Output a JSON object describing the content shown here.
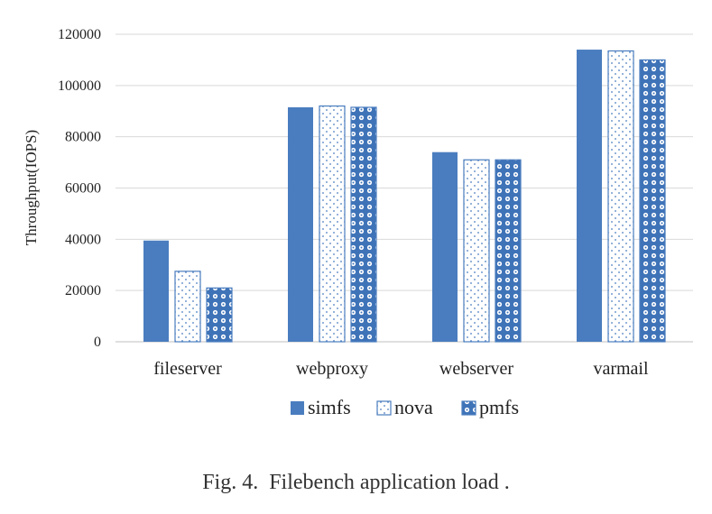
{
  "chart_data": {
    "type": "bar",
    "title": "",
    "xlabel": "",
    "ylabel": "Throughput(IOPS)",
    "ylim": [
      0,
      120000
    ],
    "yticks": [
      0,
      20000,
      40000,
      60000,
      80000,
      100000,
      120000
    ],
    "grid": true,
    "legend_position": "bottom",
    "categories": [
      "fileserver",
      "webproxy",
      "webserver",
      "varmail"
    ],
    "series": [
      {
        "name": "simfs",
        "values": [
          39500,
          91500,
          74000,
          114000
        ],
        "color": "#4a7dbf",
        "pattern": "solid"
      },
      {
        "name": "nova",
        "values": [
          27500,
          92000,
          71000,
          113500
        ],
        "color": "#4a7dbf",
        "pattern": "dots"
      },
      {
        "name": "pmfs",
        "values": [
          21000,
          91500,
          71000,
          110000
        ],
        "color": "#4a7dbf",
        "pattern": "diamonds"
      }
    ]
  },
  "caption": {
    "label": "Fig. 4.",
    "text": "Filebench application load ."
  }
}
